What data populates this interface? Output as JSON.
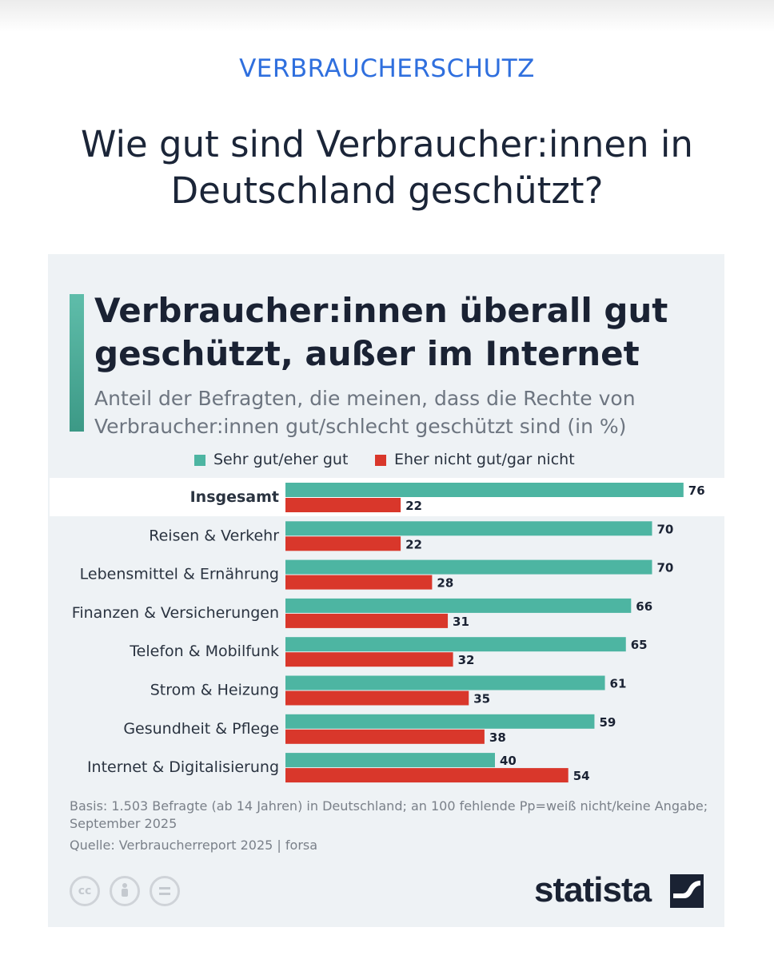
{
  "page": {
    "kicker": "VERBRAUCHERSCHUTZ",
    "headline": "Wie gut sind Verbraucher:innen in Deutschland geschützt?"
  },
  "colors": {
    "accent_blue": "#2f6fde",
    "positive": "#4db5a2",
    "negative": "#d9372b",
    "card_bg": "#eef2f5"
  },
  "legend": [
    {
      "label": "Sehr gut/eher gut",
      "color": "#4db5a2"
    },
    {
      "label": "Eher nicht gut/gar nicht",
      "color": "#d9372b"
    }
  ],
  "chart_data": {
    "type": "bar",
    "orientation": "horizontal",
    "title": "Verbraucher:innen überall gut geschützt, außer im Internet",
    "subtitle": "Anteil der Befragten, die meinen, dass die Rechte von Verbraucher:innen gut/schlecht geschützt sind (in %)",
    "categories": [
      "Insgesamt",
      "Reisen & Verkehr",
      "Lebensmittel & Ernährung",
      "Finanzen & Versicherungen",
      "Telefon & Mobilfunk",
      "Strom & Heizung",
      "Gesundheit & Pflege",
      "Internet & Digitalisierung"
    ],
    "highlight_category": "Insgesamt",
    "series": [
      {
        "name": "Sehr gut/eher gut",
        "color": "#4db5a2",
        "values": [
          76,
          70,
          70,
          66,
          65,
          61,
          59,
          40
        ]
      },
      {
        "name": "Eher nicht gut/gar nicht",
        "color": "#d9372b",
        "values": [
          22,
          22,
          28,
          31,
          32,
          35,
          38,
          54
        ]
      }
    ],
    "xlim": [
      0,
      100
    ],
    "grid": false,
    "legend_position": "top"
  },
  "footer": {
    "basis": "Basis: 1.503 Befragte (ab 14 Jahren) in Deutschland; an 100 fehlende Pp=weiß nicht/keine Angabe; September 2025",
    "source": "Quelle: Verbraucherreport 2025 | forsa",
    "license_icons": [
      "cc-icon",
      "person-icon",
      "equals-icon"
    ],
    "brand": "statista"
  }
}
